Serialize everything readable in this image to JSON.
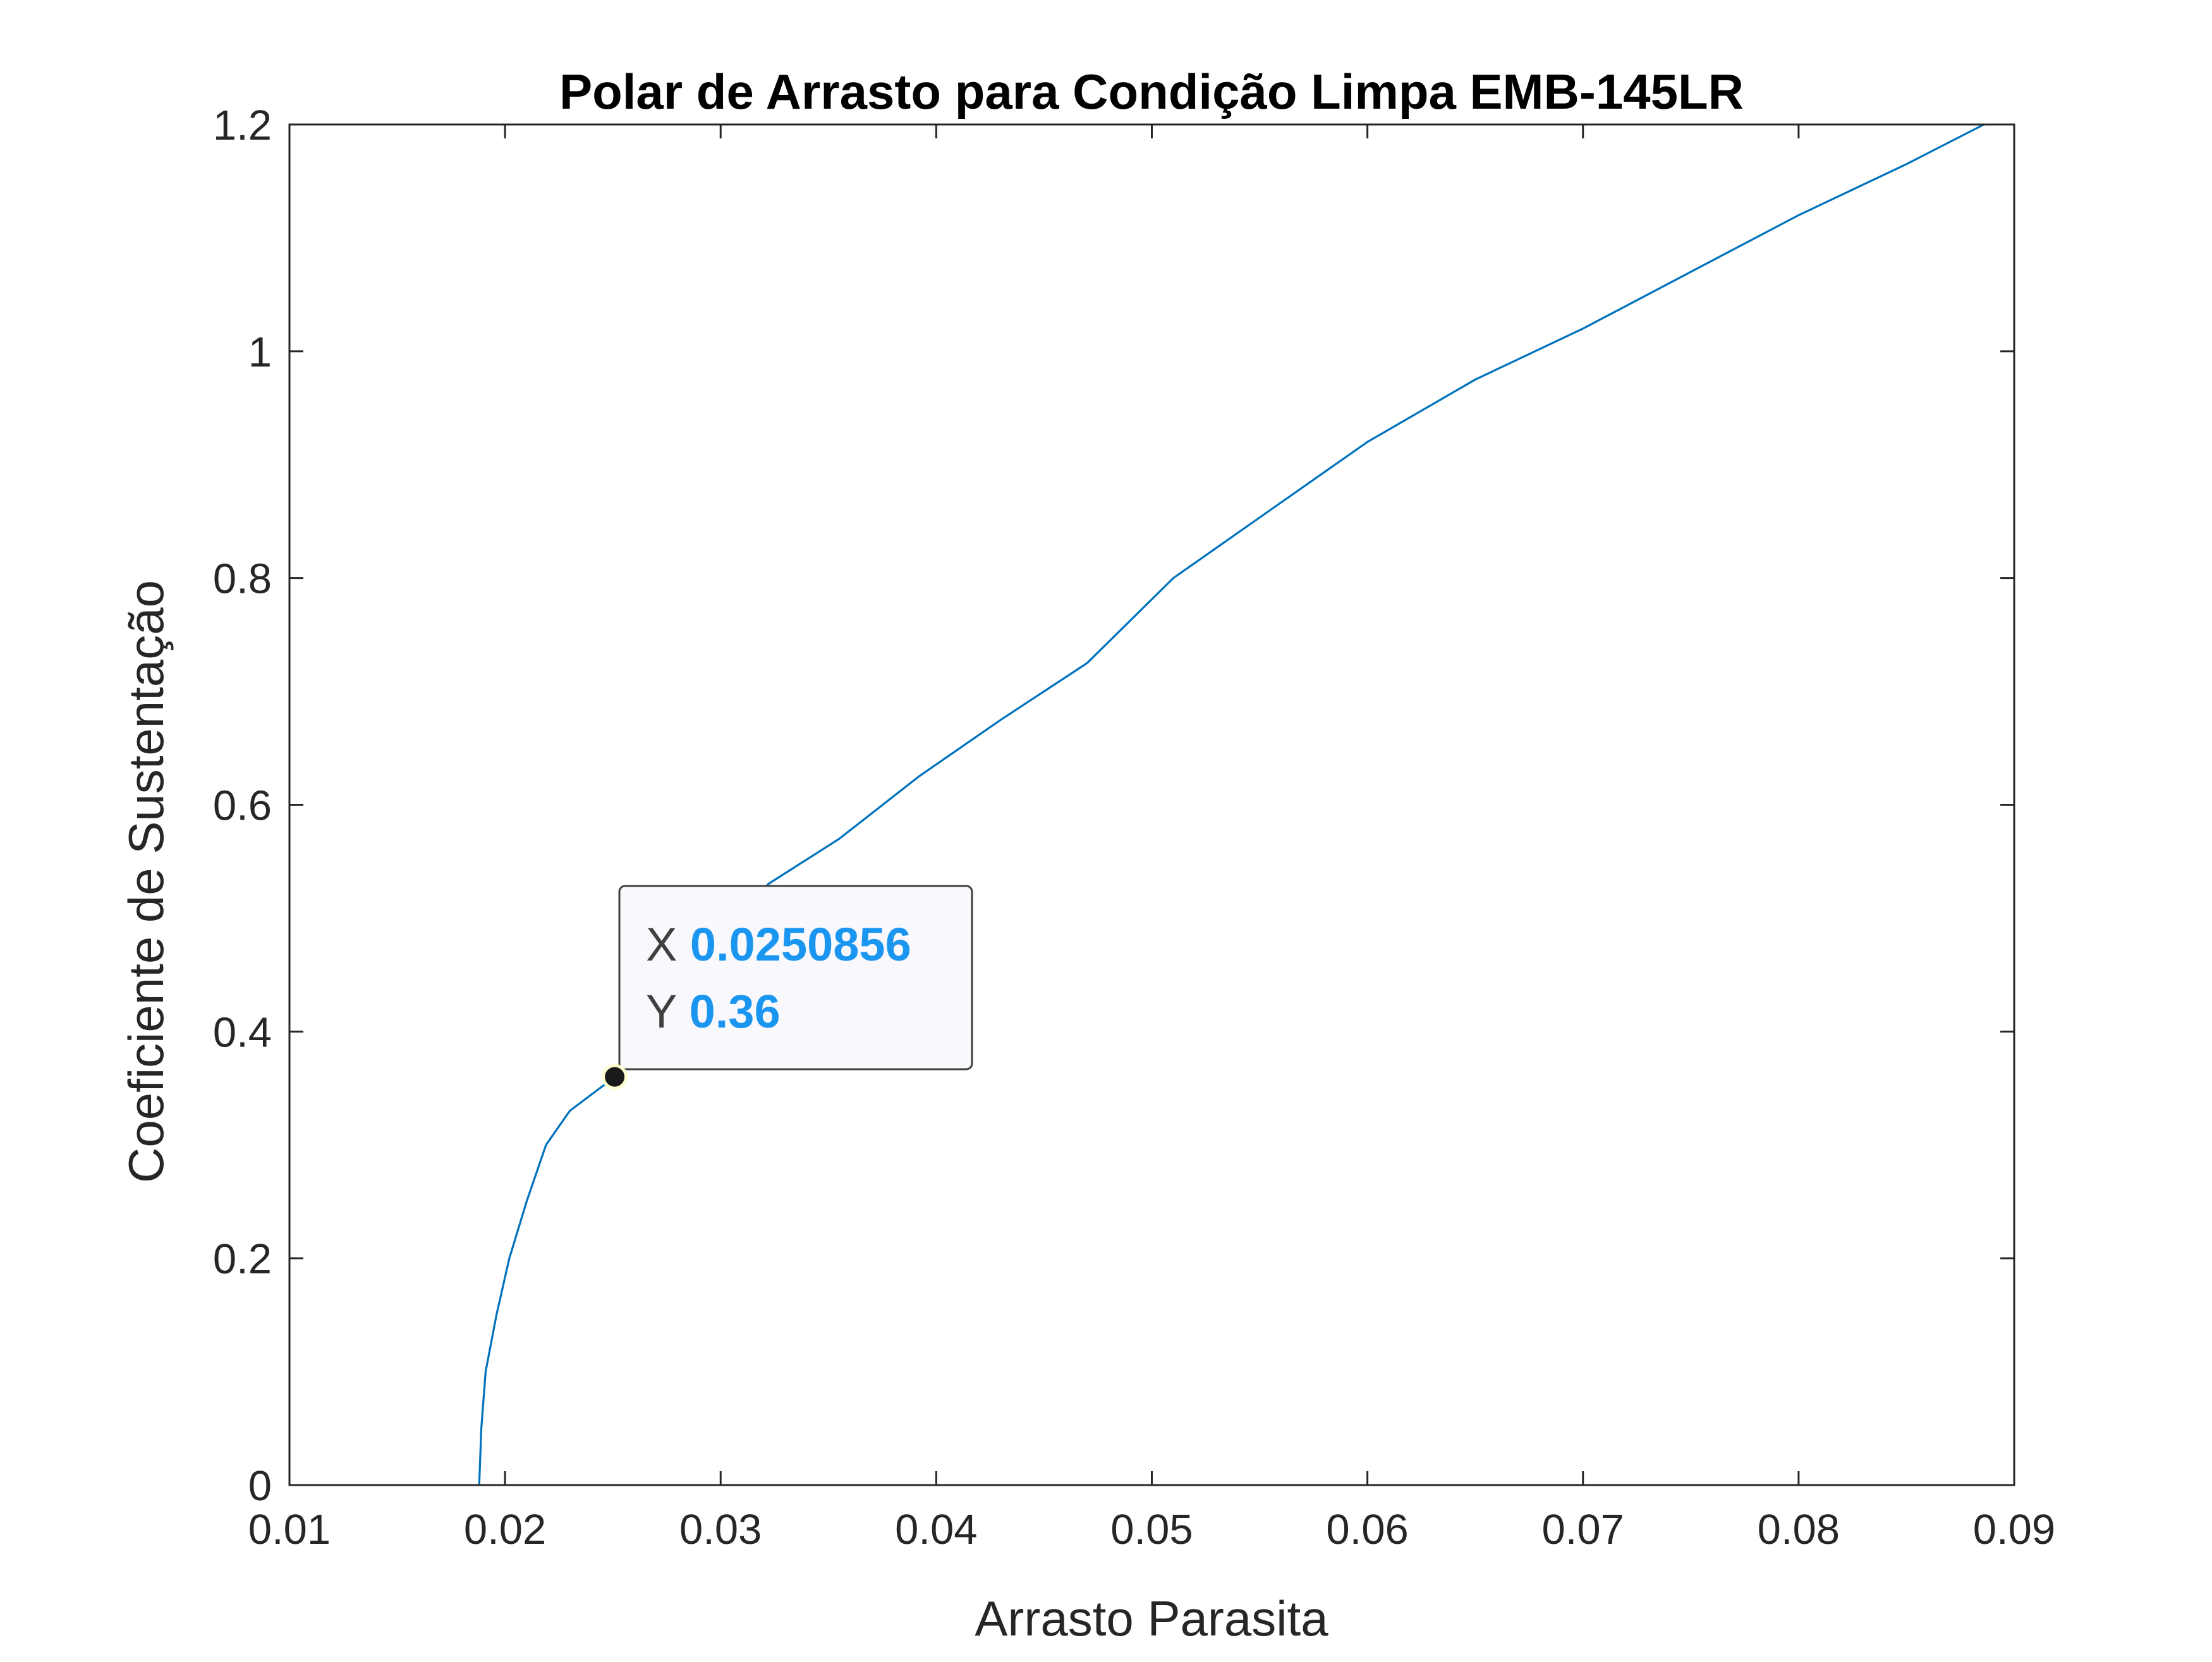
{
  "chart_data": {
    "type": "line",
    "title": "Polar de Arrasto para Condição Limpa EMB-145LR",
    "xlabel": "Arrasto Parasita",
    "ylabel": "Coeficiente de Sustentação",
    "xlim": [
      0.01,
      0.09
    ],
    "ylim": [
      0,
      1.2
    ],
    "xticks": [
      0.01,
      0.02,
      0.03,
      0.04,
      0.05,
      0.06,
      0.07,
      0.08,
      0.09
    ],
    "xtick_labels": [
      "0.01",
      "0.02",
      "0.03",
      "0.04",
      "0.05",
      "0.06",
      "0.07",
      "0.08",
      "0.09"
    ],
    "yticks": [
      0,
      0.2,
      0.4,
      0.6,
      0.8,
      1.0,
      1.2
    ],
    "ytick_labels": [
      "0",
      "0.2",
      "0.4",
      "0.6",
      "0.8",
      "1",
      "1.2"
    ],
    "grid": false,
    "series": [
      {
        "color": "#0072bd",
        "points": [
          [
            0.0188,
            0.0
          ],
          [
            0.0189,
            0.05
          ],
          [
            0.0191,
            0.1
          ],
          [
            0.0196,
            0.15
          ],
          [
            0.0202,
            0.2
          ],
          [
            0.021,
            0.25
          ],
          [
            0.0219,
            0.3
          ],
          [
            0.023,
            0.33
          ],
          [
            0.02509,
            0.36
          ],
          [
            0.0274,
            0.42
          ],
          [
            0.0295,
            0.46
          ],
          [
            0.0322,
            0.53
          ],
          [
            0.0355,
            0.57
          ],
          [
            0.0392,
            0.625
          ],
          [
            0.043,
            0.675
          ],
          [
            0.047,
            0.725
          ],
          [
            0.051,
            0.8
          ],
          [
            0.0555,
            0.86
          ],
          [
            0.06,
            0.92
          ],
          [
            0.065,
            0.975
          ],
          [
            0.07,
            1.02
          ],
          [
            0.075,
            1.07
          ],
          [
            0.08,
            1.12
          ],
          [
            0.085,
            1.165
          ],
          [
            0.0886,
            1.2
          ]
        ]
      }
    ],
    "datatip": {
      "x": 0.0250856,
      "y": 0.36,
      "x_key": "X",
      "y_key": "Y",
      "x_text": "0.0250856",
      "y_text": "0.36",
      "value_color": "#1b96f0"
    }
  }
}
